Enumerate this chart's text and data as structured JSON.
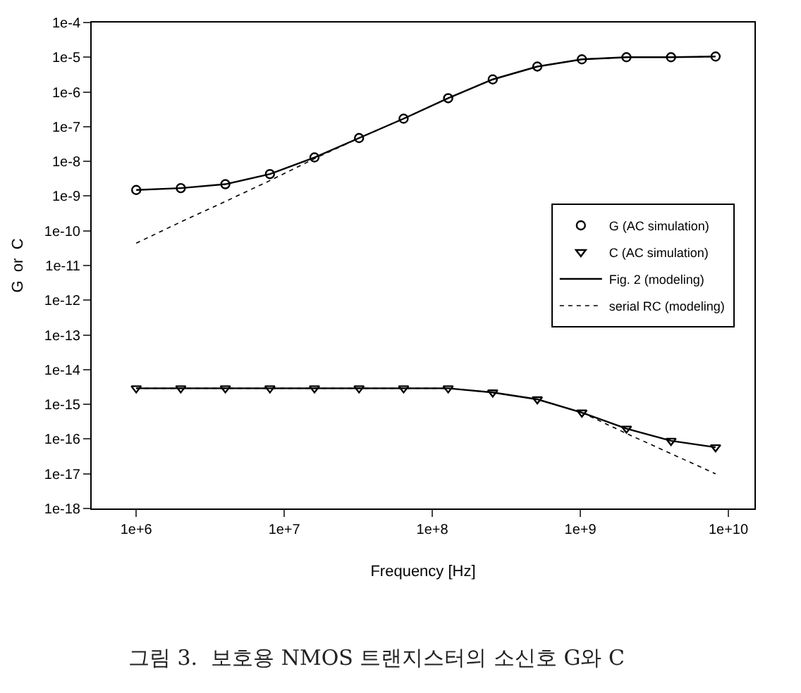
{
  "chart_data": {
    "type": "line",
    "xlabel": "Frequency [Hz]",
    "ylabel": "G  or  C",
    "annotations": [
      "그림 3.  보호용 NMOS 트랜지스터의 소신호 G와 C"
    ],
    "x": [
      1000000,
      2000000,
      4000000,
      8000000,
      16000000,
      32000000,
      64000000,
      128000000,
      256000000,
      512000000,
      1024000000,
      2048000000,
      4096000000,
      8192000000
    ],
    "series": [
      {
        "name": "G (AC simulation)",
        "type": "scatter",
        "marker": "circle",
        "color": "#000000",
        "values": [
          1.5e-09,
          1.7e-09,
          2.2e-09,
          4.3e-09,
          1.3e-08,
          4.7e-08,
          1.7e-07,
          6.6e-07,
          2.3e-06,
          5.4e-06,
          8.7e-06,
          1e-05,
          1e-05,
          1.05e-05
        ]
      },
      {
        "name": "C (AC simulation)",
        "type": "scatter",
        "marker": "triangle",
        "color": "#000000",
        "values": [
          2.9e-15,
          2.9e-15,
          2.9e-15,
          2.9e-15,
          2.9e-15,
          2.9e-15,
          2.9e-15,
          2.9e-15,
          2.2e-15,
          1.4e-15,
          5.8e-16,
          2e-16,
          8.9e-17,
          5.8e-17
        ]
      },
      {
        "name": "Fig. 2 (modeling)",
        "line_style": "solid",
        "color": "#000000",
        "values": [
          1.5e-09,
          1.7e-09,
          2.2e-09,
          4.3e-09,
          1.3e-08,
          4.7e-08,
          1.7e-07,
          6.6e-07,
          2.3e-06,
          5.4e-06,
          8.7e-06,
          1e-05,
          1e-05,
          1.05e-05
        ]
      },
      {
        "line_style": "solid",
        "color": "#000000",
        "values": [
          2.9e-15,
          2.9e-15,
          2.9e-15,
          2.9e-15,
          2.9e-15,
          2.9e-15,
          2.9e-15,
          2.9e-15,
          2.2e-15,
          1.4e-15,
          5.8e-16,
          2e-16,
          8.9e-17,
          5.8e-17
        ]
      },
      {
        "name": "serial RC (modeling)",
        "line_style": "dotted",
        "color": "#000000",
        "values": [
          4.4e-11,
          1.8e-10,
          7e-10,
          2.8e-09,
          1.2e-08,
          4.7e-08,
          1.7e-07,
          6.6e-07,
          2.3e-06,
          5.4e-06,
          8.7e-06,
          1e-05,
          1e-05,
          1.05e-05
        ]
      },
      {
        "line_style": "dotted",
        "color": "#000000",
        "values": [
          2.9e-15,
          2.9e-15,
          2.9e-15,
          2.9e-15,
          2.9e-15,
          2.9e-15,
          2.9e-15,
          2.9e-15,
          2.2e-15,
          1.4e-15,
          5.8e-16,
          1.45e-16,
          3.8e-17,
          1e-17
        ]
      }
    ],
    "xlim": [
      500000,
      15000000000
    ],
    "ylim": [
      1e-18,
      0.0001
    ],
    "xticks": [
      {
        "value": 1000000,
        "label": "1e+6"
      },
      {
        "value": 10000000,
        "label": "1e+7"
      },
      {
        "value": 100000000,
        "label": "1e+8"
      },
      {
        "value": 1000000000,
        "label": "1e+9"
      },
      {
        "value": 10000000000,
        "label": "1e+10"
      }
    ],
    "yticks": [
      {
        "value": 1e-18,
        "label": "1e-18"
      },
      {
        "value": 1e-17,
        "label": "1e-17"
      },
      {
        "value": 1e-16,
        "label": "1e-16"
      },
      {
        "value": 1e-15,
        "label": "1e-15"
      },
      {
        "value": 1e-14,
        "label": "1e-14"
      },
      {
        "value": 1e-13,
        "label": "1e-13"
      },
      {
        "value": 1e-12,
        "label": "1e-12"
      },
      {
        "value": 1e-11,
        "label": "1e-11"
      },
      {
        "value": 1e-10,
        "label": "1e-10"
      },
      {
        "value": 1e-09,
        "label": "1e-9"
      },
      {
        "value": 1e-08,
        "label": "1e-8"
      },
      {
        "value": 1e-07,
        "label": "1e-7"
      },
      {
        "value": 1e-06,
        "label": "1e-6"
      },
      {
        "value": 1e-05,
        "label": "1e-5"
      },
      {
        "value": 0.0001,
        "label": "1e-4"
      }
    ],
    "log": "xy",
    "grid": false,
    "legend": "right"
  }
}
